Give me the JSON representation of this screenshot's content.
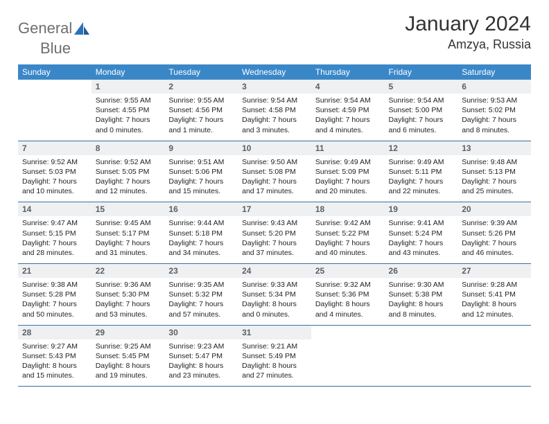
{
  "logo": {
    "text1": "General",
    "text2": "Blue"
  },
  "title": "January 2024",
  "location": "Amzya, Russia",
  "colors": {
    "header_bg": "#3a87c8",
    "header_text": "#ffffff",
    "daynum_bg": "#eef0f2",
    "daynum_text": "#5a5f66",
    "border": "#3a6ea5",
    "logo_gray": "#6e6e6e",
    "logo_blue": "#2a71b8"
  },
  "weekdays": [
    "Sunday",
    "Monday",
    "Tuesday",
    "Wednesday",
    "Thursday",
    "Friday",
    "Saturday"
  ],
  "weeks": [
    [
      {
        "n": "",
        "sr": "",
        "ss": "",
        "d1": "",
        "d2": ""
      },
      {
        "n": "1",
        "sr": "Sunrise: 9:55 AM",
        "ss": "Sunset: 4:55 PM",
        "d1": "Daylight: 7 hours",
        "d2": "and 0 minutes."
      },
      {
        "n": "2",
        "sr": "Sunrise: 9:55 AM",
        "ss": "Sunset: 4:56 PM",
        "d1": "Daylight: 7 hours",
        "d2": "and 1 minute."
      },
      {
        "n": "3",
        "sr": "Sunrise: 9:54 AM",
        "ss": "Sunset: 4:58 PM",
        "d1": "Daylight: 7 hours",
        "d2": "and 3 minutes."
      },
      {
        "n": "4",
        "sr": "Sunrise: 9:54 AM",
        "ss": "Sunset: 4:59 PM",
        "d1": "Daylight: 7 hours",
        "d2": "and 4 minutes."
      },
      {
        "n": "5",
        "sr": "Sunrise: 9:54 AM",
        "ss": "Sunset: 5:00 PM",
        "d1": "Daylight: 7 hours",
        "d2": "and 6 minutes."
      },
      {
        "n": "6",
        "sr": "Sunrise: 9:53 AM",
        "ss": "Sunset: 5:02 PM",
        "d1": "Daylight: 7 hours",
        "d2": "and 8 minutes."
      }
    ],
    [
      {
        "n": "7",
        "sr": "Sunrise: 9:52 AM",
        "ss": "Sunset: 5:03 PM",
        "d1": "Daylight: 7 hours",
        "d2": "and 10 minutes."
      },
      {
        "n": "8",
        "sr": "Sunrise: 9:52 AM",
        "ss": "Sunset: 5:05 PM",
        "d1": "Daylight: 7 hours",
        "d2": "and 12 minutes."
      },
      {
        "n": "9",
        "sr": "Sunrise: 9:51 AM",
        "ss": "Sunset: 5:06 PM",
        "d1": "Daylight: 7 hours",
        "d2": "and 15 minutes."
      },
      {
        "n": "10",
        "sr": "Sunrise: 9:50 AM",
        "ss": "Sunset: 5:08 PM",
        "d1": "Daylight: 7 hours",
        "d2": "and 17 minutes."
      },
      {
        "n": "11",
        "sr": "Sunrise: 9:49 AM",
        "ss": "Sunset: 5:09 PM",
        "d1": "Daylight: 7 hours",
        "d2": "and 20 minutes."
      },
      {
        "n": "12",
        "sr": "Sunrise: 9:49 AM",
        "ss": "Sunset: 5:11 PM",
        "d1": "Daylight: 7 hours",
        "d2": "and 22 minutes."
      },
      {
        "n": "13",
        "sr": "Sunrise: 9:48 AM",
        "ss": "Sunset: 5:13 PM",
        "d1": "Daylight: 7 hours",
        "d2": "and 25 minutes."
      }
    ],
    [
      {
        "n": "14",
        "sr": "Sunrise: 9:47 AM",
        "ss": "Sunset: 5:15 PM",
        "d1": "Daylight: 7 hours",
        "d2": "and 28 minutes."
      },
      {
        "n": "15",
        "sr": "Sunrise: 9:45 AM",
        "ss": "Sunset: 5:17 PM",
        "d1": "Daylight: 7 hours",
        "d2": "and 31 minutes."
      },
      {
        "n": "16",
        "sr": "Sunrise: 9:44 AM",
        "ss": "Sunset: 5:18 PM",
        "d1": "Daylight: 7 hours",
        "d2": "and 34 minutes."
      },
      {
        "n": "17",
        "sr": "Sunrise: 9:43 AM",
        "ss": "Sunset: 5:20 PM",
        "d1": "Daylight: 7 hours",
        "d2": "and 37 minutes."
      },
      {
        "n": "18",
        "sr": "Sunrise: 9:42 AM",
        "ss": "Sunset: 5:22 PM",
        "d1": "Daylight: 7 hours",
        "d2": "and 40 minutes."
      },
      {
        "n": "19",
        "sr": "Sunrise: 9:41 AM",
        "ss": "Sunset: 5:24 PM",
        "d1": "Daylight: 7 hours",
        "d2": "and 43 minutes."
      },
      {
        "n": "20",
        "sr": "Sunrise: 9:39 AM",
        "ss": "Sunset: 5:26 PM",
        "d1": "Daylight: 7 hours",
        "d2": "and 46 minutes."
      }
    ],
    [
      {
        "n": "21",
        "sr": "Sunrise: 9:38 AM",
        "ss": "Sunset: 5:28 PM",
        "d1": "Daylight: 7 hours",
        "d2": "and 50 minutes."
      },
      {
        "n": "22",
        "sr": "Sunrise: 9:36 AM",
        "ss": "Sunset: 5:30 PM",
        "d1": "Daylight: 7 hours",
        "d2": "and 53 minutes."
      },
      {
        "n": "23",
        "sr": "Sunrise: 9:35 AM",
        "ss": "Sunset: 5:32 PM",
        "d1": "Daylight: 7 hours",
        "d2": "and 57 minutes."
      },
      {
        "n": "24",
        "sr": "Sunrise: 9:33 AM",
        "ss": "Sunset: 5:34 PM",
        "d1": "Daylight: 8 hours",
        "d2": "and 0 minutes."
      },
      {
        "n": "25",
        "sr": "Sunrise: 9:32 AM",
        "ss": "Sunset: 5:36 PM",
        "d1": "Daylight: 8 hours",
        "d2": "and 4 minutes."
      },
      {
        "n": "26",
        "sr": "Sunrise: 9:30 AM",
        "ss": "Sunset: 5:38 PM",
        "d1": "Daylight: 8 hours",
        "d2": "and 8 minutes."
      },
      {
        "n": "27",
        "sr": "Sunrise: 9:28 AM",
        "ss": "Sunset: 5:41 PM",
        "d1": "Daylight: 8 hours",
        "d2": "and 12 minutes."
      }
    ],
    [
      {
        "n": "28",
        "sr": "Sunrise: 9:27 AM",
        "ss": "Sunset: 5:43 PM",
        "d1": "Daylight: 8 hours",
        "d2": "and 15 minutes."
      },
      {
        "n": "29",
        "sr": "Sunrise: 9:25 AM",
        "ss": "Sunset: 5:45 PM",
        "d1": "Daylight: 8 hours",
        "d2": "and 19 minutes."
      },
      {
        "n": "30",
        "sr": "Sunrise: 9:23 AM",
        "ss": "Sunset: 5:47 PM",
        "d1": "Daylight: 8 hours",
        "d2": "and 23 minutes."
      },
      {
        "n": "31",
        "sr": "Sunrise: 9:21 AM",
        "ss": "Sunset: 5:49 PM",
        "d1": "Daylight: 8 hours",
        "d2": "and 27 minutes."
      },
      {
        "n": "",
        "sr": "",
        "ss": "",
        "d1": "",
        "d2": ""
      },
      {
        "n": "",
        "sr": "",
        "ss": "",
        "d1": "",
        "d2": ""
      },
      {
        "n": "",
        "sr": "",
        "ss": "",
        "d1": "",
        "d2": ""
      }
    ]
  ]
}
